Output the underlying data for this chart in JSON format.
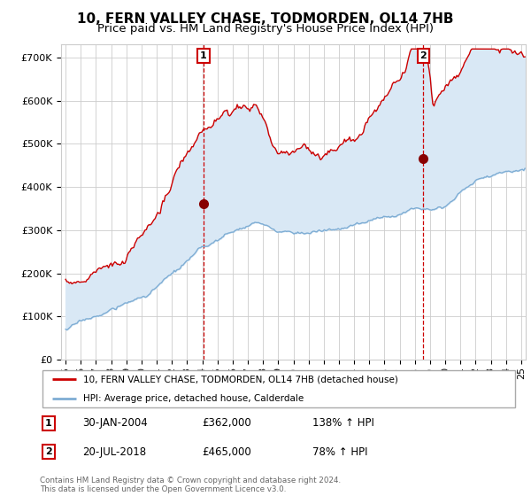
{
  "title": "10, FERN VALLEY CHASE, TODMORDEN, OL14 7HB",
  "subtitle": "Price paid vs. HM Land Registry's House Price Index (HPI)",
  "ylabel_ticks": [
    "£0",
    "£100K",
    "£200K",
    "£300K",
    "£400K",
    "£500K",
    "£600K",
    "£700K"
  ],
  "ylim": [
    0,
    730000
  ],
  "xlim_start": 1994.7,
  "xlim_end": 2025.3,
  "sale1_date": 2004.08,
  "sale1_price": 362000,
  "sale1_label": "1",
  "sale2_date": 2018.55,
  "sale2_price": 465000,
  "sale2_label": "2",
  "red_line_color": "#cc0000",
  "blue_line_color": "#7eadd4",
  "fill_color": "#d9e8f5",
  "sale_marker_color": "#880000",
  "annotation_box_color": "#cc0000",
  "legend_line1": "10, FERN VALLEY CHASE, TODMORDEN, OL14 7HB (detached house)",
  "legend_line2": "HPI: Average price, detached house, Calderdale",
  "table_row1": [
    "1",
    "30-JAN-2004",
    "£362,000",
    "138% ↑ HPI"
  ],
  "table_row2": [
    "2",
    "20-JUL-2018",
    "£465,000",
    "78% ↑ HPI"
  ],
  "footer": "Contains HM Land Registry data © Crown copyright and database right 2024.\nThis data is licensed under the Open Government Licence v3.0.",
  "bg_color": "#ffffff",
  "grid_color": "#cccccc",
  "title_fontsize": 11,
  "subtitle_fontsize": 9.5,
  "axis_fontsize": 8
}
